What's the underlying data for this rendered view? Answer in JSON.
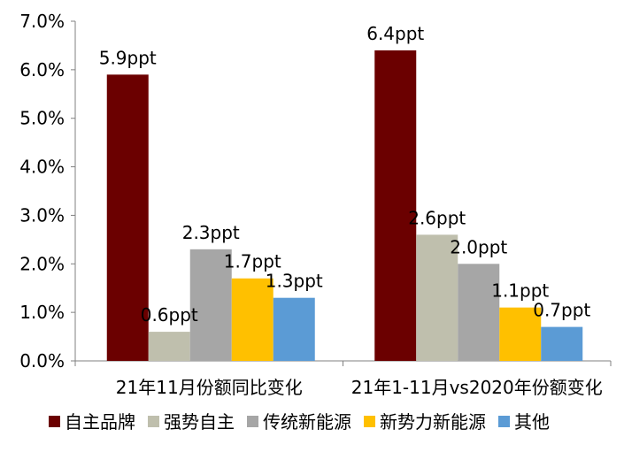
{
  "chart_data": {
    "type": "bar",
    "categories": [
      "21年11月份额同比变化",
      "21年1-11月vs2020年份额变化"
    ],
    "series": [
      {
        "name": "自主品牌",
        "values": [
          5.9,
          6.4
        ],
        "labels": [
          "5.9ppt",
          "6.4ppt"
        ],
        "color": "#6b0000"
      },
      {
        "name": "强势自主",
        "values": [
          0.6,
          2.6
        ],
        "labels": [
          "0.6ppt",
          "2.6ppt"
        ],
        "color": "#bfbfad"
      },
      {
        "name": "传统新能源",
        "values": [
          2.3,
          2.0
        ],
        "labels": [
          "2.3ppt",
          "2.0ppt"
        ],
        "color": "#a6a6a6"
      },
      {
        "name": "新势力新能源",
        "values": [
          1.7,
          1.1
        ],
        "labels": [
          "1.7ppt",
          "1.1ppt"
        ],
        "color": "#ffc000"
      },
      {
        "name": "其他",
        "values": [
          1.3,
          0.7
        ],
        "labels": [
          "1.3ppt",
          "0.7ppt"
        ],
        "color": "#5b9bd5"
      }
    ],
    "y_ticks": [
      "0.0%",
      "1.0%",
      "2.0%",
      "3.0%",
      "4.0%",
      "5.0%",
      "6.0%",
      "7.0%"
    ],
    "ylim": [
      0,
      7
    ],
    "grid": false,
    "legend_position": "bottom"
  }
}
